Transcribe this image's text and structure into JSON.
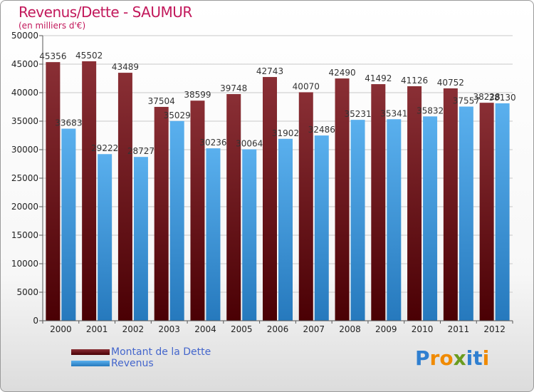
{
  "title": "Revenus/Dette - SAUMUR",
  "subtitle": "(en milliers d'€)",
  "logo": {
    "text": "Proxiti",
    "letter_colors": [
      "#2f7fd0",
      "#f08a00",
      "#f08a00",
      "#6a9c1f",
      "#2f7fd0",
      "#2f7fd0",
      "#f08a00"
    ]
  },
  "colors": {
    "dette_top": "#8a2f35",
    "dette_bottom": "#4a0004",
    "revenus_top": "#5ab0ee",
    "revenus_bottom": "#2679bd",
    "grid": "#c8c8c8",
    "axis": "#555555"
  },
  "chart_data": {
    "type": "bar",
    "title": "Revenus/Dette - SAUMUR",
    "subtitle": "(en milliers d'€)",
    "categories": [
      "2000",
      "2001",
      "2002",
      "2003",
      "2004",
      "2005",
      "2006",
      "2007",
      "2008",
      "2009",
      "2010",
      "2011",
      "2012"
    ],
    "series": [
      {
        "name": "Montant de la Dette",
        "values": [
          45356,
          45502,
          43489,
          37504,
          38599,
          39748,
          42743,
          40070,
          42490,
          41492,
          41126,
          40752,
          38228
        ]
      },
      {
        "name": "Revenus",
        "values": [
          33683,
          29222,
          28727,
          35029,
          30236,
          30064,
          31902,
          32486,
          35231,
          35341,
          35832,
          37557,
          38130
        ]
      }
    ],
    "ylim": [
      0,
      50000
    ],
    "yticks": [
      0,
      5000,
      10000,
      15000,
      20000,
      25000,
      30000,
      35000,
      40000,
      45000,
      50000
    ],
    "grid": true,
    "legend": "bottom-left"
  }
}
